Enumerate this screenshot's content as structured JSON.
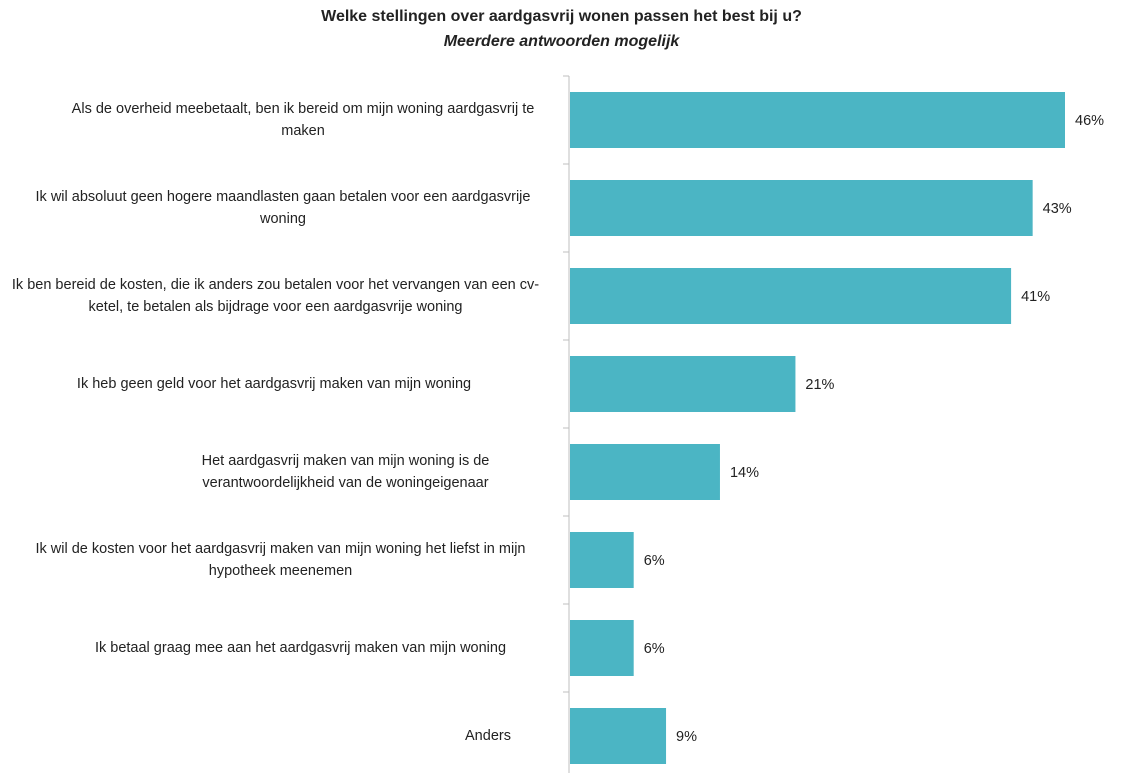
{
  "chart_data": {
    "type": "bar",
    "orientation": "horizontal",
    "title": "Welke stellingen over aardgasvrij wonen passen het best bij u?",
    "subtitle": "Meerdere antwoorden mogelijk",
    "categories": [
      "Als de overheid meebetaalt, ben ik bereid om mijn woning aardgasvrij te maken",
      "Ik wil absoluut geen hogere maandlasten gaan betalen voor een aardgasvrije woning",
      "Ik ben bereid de kosten, die ik anders zou betalen voor het vervangen van een cv-ketel, te betalen als bijdrage voor een aardgasvrije woning",
      "Ik heb geen geld voor het aardgasvrij maken van mijn woning",
      "Het aardgasvrij maken van mijn woning is de verantwoordelijkheid van de woningeigenaar",
      "Ik wil de kosten voor het aardgasvrij maken van mijn woning het liefst in mijn hypotheek meenemen",
      "Ik betaal graag mee aan het aardgasvrij maken van mijn woning",
      "Anders"
    ],
    "values": [
      46,
      43,
      41,
      21,
      14,
      6,
      6,
      9
    ],
    "value_labels": [
      "46%",
      "43%",
      "41%",
      "21%",
      "14%",
      "6%",
      "6%",
      "9%"
    ],
    "color": "#4bb5c4"
  }
}
